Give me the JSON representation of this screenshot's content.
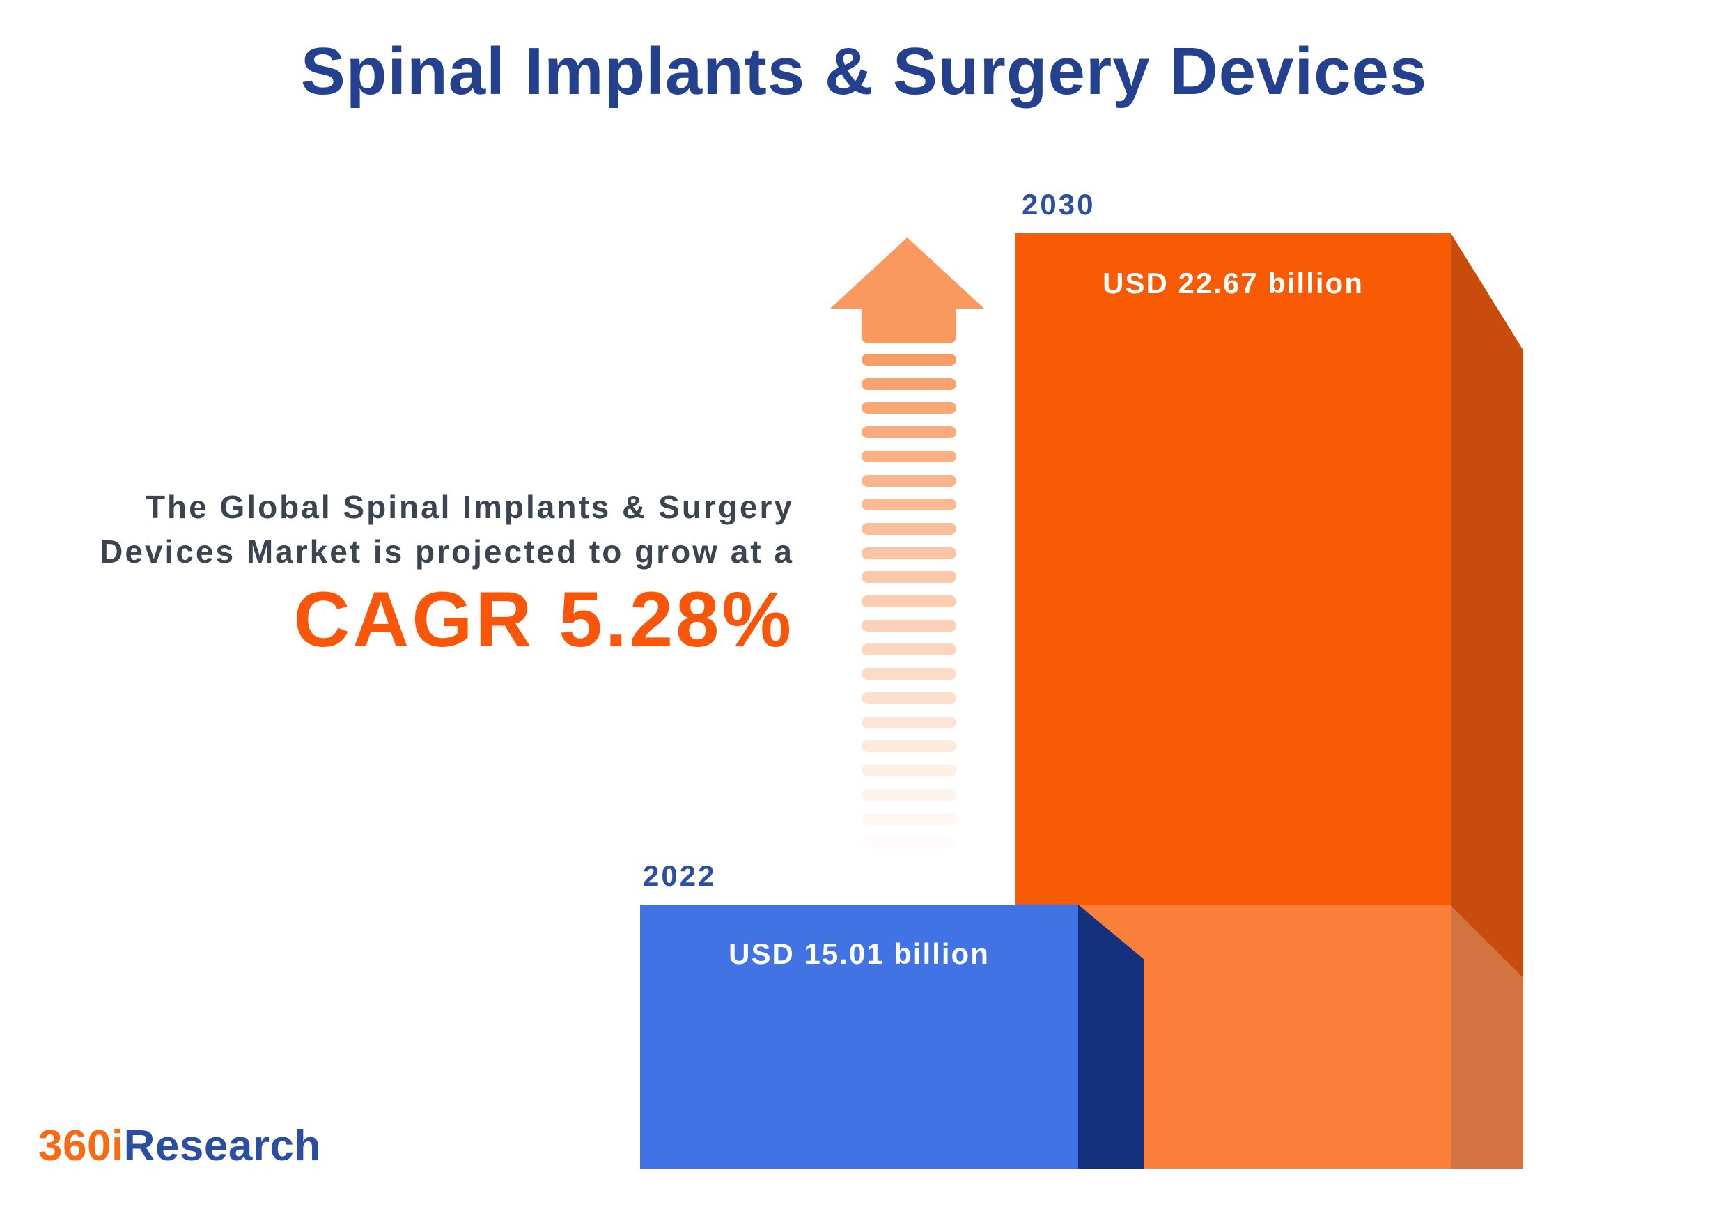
{
  "title": "Spinal Implants & Surgery Devices",
  "description": {
    "line1": "The Global Spinal Implants & Surgery",
    "line2": "Devices Market is projected to grow at a",
    "cagr_text": "CAGR 5.28%"
  },
  "bars": [
    {
      "year": "2022",
      "value_label": "USD 15.01 billion"
    },
    {
      "year": "2030",
      "value_label": "USD 22.67 billion"
    }
  ],
  "logo": {
    "part1": "360i",
    "part2": "Research"
  },
  "chart_data": {
    "type": "bar",
    "title": "Spinal Implants & Surgery Devices",
    "categories": [
      "2022",
      "2030"
    ],
    "values": [
      15.01,
      22.67
    ],
    "unit": "USD billion",
    "value_labels": [
      "USD 15.01 billion",
      "USD 22.67 billion"
    ],
    "cagr_percent": 5.28,
    "annotation": "The Global Spinal Implants & Surgery Devices Market is projected to grow at a CAGR 5.28%",
    "legend": "none",
    "grid": false,
    "colors": {
      "bar_2022_front": "#4273E4",
      "bar_2022_side": "#15307D",
      "bar_2030_front": "#F95B04",
      "bar_2030_side": "#C84C0B",
      "arrow": "#F9985F",
      "title": "#24418F",
      "cagr": "#FA560A",
      "description": "#3B4450",
      "year_label": "#2D4FA3",
      "value_label": "#FFFFFF"
    }
  }
}
